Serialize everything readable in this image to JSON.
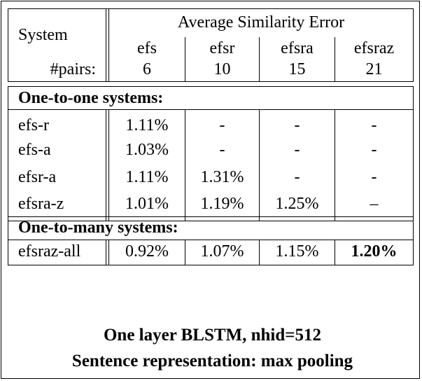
{
  "table": {
    "header": {
      "system_label": "System",
      "group_title": "Average Similarity Error",
      "pairs_label": "#pairs:",
      "columns": [
        {
          "name": "efs",
          "pairs": "6"
        },
        {
          "name": "efsr",
          "pairs": "10"
        },
        {
          "name": "efsra",
          "pairs": "15"
        },
        {
          "name": "efsraz",
          "pairs": "21"
        }
      ]
    },
    "one_to_one": {
      "title": "One-to-one systems:",
      "rows": [
        {
          "system": "efs-r",
          "values": [
            "1.11%",
            "-",
            "-",
            "-"
          ]
        },
        {
          "system": "efs-a",
          "values": [
            "1.03%",
            "-",
            "-",
            "-"
          ]
        },
        {
          "system": "efsr-a",
          "values": [
            "1.11%",
            "1.31%",
            "-",
            "-"
          ]
        },
        {
          "system": "efsra-z",
          "values": [
            "1.01%",
            "1.19%",
            "1.25%",
            "–"
          ]
        }
      ]
    },
    "one_to_many": {
      "title": "One-to-many systems:",
      "rows": [
        {
          "system": "efsraz-all",
          "values": [
            "0.92%",
            "1.07%",
            "1.15%",
            "1.20%"
          ],
          "bold_index": 3
        }
      ]
    }
  },
  "footer": {
    "line1": "One layer BLSTM, nhid=512",
    "line2": "Sentence representation: max pooling"
  }
}
